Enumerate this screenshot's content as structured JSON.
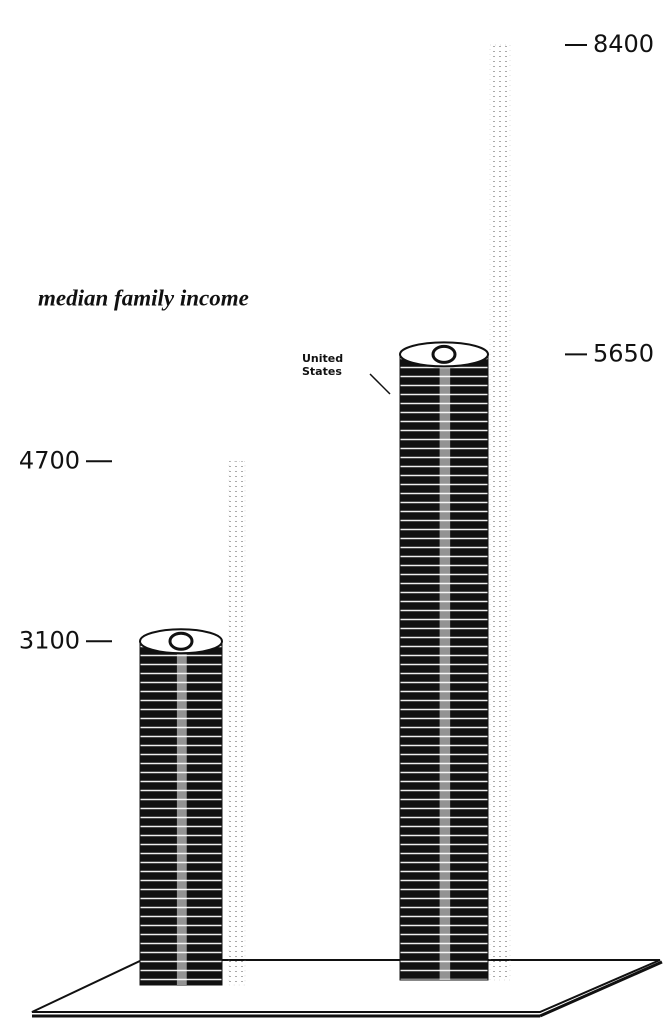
{
  "chart_data": {
    "type": "coin-stack",
    "title": "median family income",
    "categories": [
      null,
      "United States"
    ],
    "values": [
      3100,
      5650
    ],
    "ghost_values": [
      4700,
      8400
    ],
    "ylim": [
      0,
      8800
    ],
    "color": "#111111",
    "ghost_color": "#b0b0b0"
  }
}
